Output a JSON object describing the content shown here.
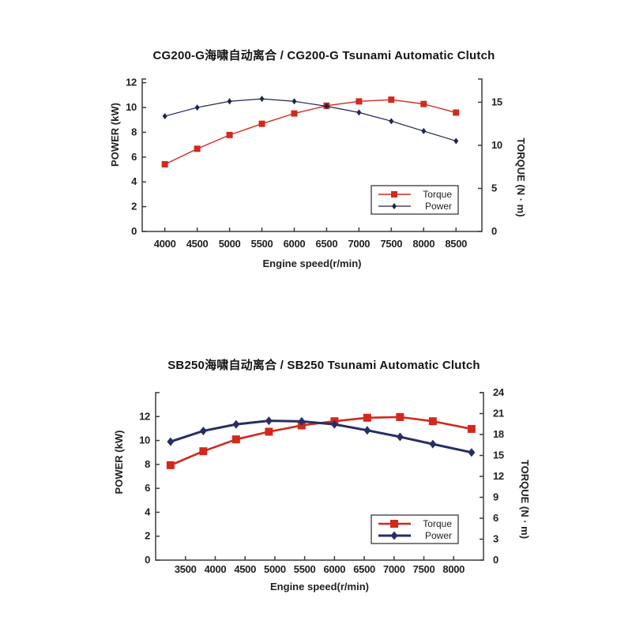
{
  "page": {
    "background": "#ffffff"
  },
  "chart_data": [
    {
      "type": "line",
      "title": "CG200-G海啸自动离合 / CG200-G Tsunami Automatic Clutch",
      "xlabel": "Engine speed(r/min)",
      "x": [
        4000,
        4500,
        5000,
        5500,
        6000,
        6500,
        7000,
        7500,
        8000,
        8500
      ],
      "xticks": [
        4000,
        4500,
        5000,
        5500,
        6000,
        6500,
        7000,
        7500,
        8000,
        8500
      ],
      "xlim": [
        3650,
        8900
      ],
      "left_axis": {
        "label": "POWER (kW)",
        "ticks": [
          0,
          2,
          4,
          6,
          8,
          10,
          12
        ],
        "range": [
          0,
          12.3
        ]
      },
      "right_axis": {
        "label": "TORQUE (N · m)",
        "ticks": [
          0,
          5,
          10,
          15
        ],
        "range": [
          0,
          17.7
        ]
      },
      "series": [
        {
          "name": "Torque",
          "axis": "right",
          "marker": "square",
          "color": "#d2291d",
          "values": [
            7.8,
            9.6,
            11.2,
            12.5,
            13.7,
            14.6,
            15.1,
            15.3,
            14.8,
            13.8
          ]
        },
        {
          "name": "Power",
          "axis": "left",
          "marker": "diamond",
          "color": "#1d2352",
          "values": [
            9.3,
            10.0,
            10.5,
            10.7,
            10.5,
            10.1,
            9.6,
            8.9,
            8.1,
            7.3
          ]
        }
      ],
      "legend": {
        "entries": [
          "Torque",
          "Power"
        ],
        "position": "lower-right"
      },
      "grid": false
    },
    {
      "type": "line",
      "title": "SB250海啸自动离合 / SB250 Tsunami Automatic Clutch",
      "xlabel": "Engine speed(r/min)",
      "x": [
        3250,
        3800,
        4350,
        4900,
        5450,
        6000,
        6550,
        7100,
        7650,
        8300
      ],
      "xticks": [
        3500,
        4000,
        4500,
        5000,
        5500,
        6000,
        6500,
        7000,
        7500,
        8000
      ],
      "xlim": [
        3000,
        8500
      ],
      "left_axis": {
        "label": "POWER (kW)",
        "ticks": [
          0,
          2,
          4,
          6,
          8,
          10,
          12
        ],
        "range": [
          0,
          14
        ]
      },
      "right_axis": {
        "label": "TORQUE (N · m)",
        "ticks": [
          0,
          3,
          6,
          9,
          12,
          15,
          18,
          21,
          24
        ],
        "range": [
          0,
          24
        ]
      },
      "series": [
        {
          "name": "Torque",
          "axis": "right",
          "marker": "square",
          "color": "#d2291d",
          "values": [
            13.6,
            15.6,
            17.3,
            18.4,
            19.3,
            19.9,
            20.4,
            20.5,
            19.9,
            18.8
          ]
        },
        {
          "name": "Power",
          "axis": "left",
          "marker": "diamond",
          "color": "#272e63",
          "values": [
            9.9,
            10.8,
            11.35,
            11.65,
            11.6,
            11.35,
            10.85,
            10.3,
            9.7,
            9.0
          ]
        }
      ],
      "legend": {
        "entries": [
          "Torque",
          "Power"
        ],
        "position": "lower-right"
      },
      "grid": false
    }
  ]
}
